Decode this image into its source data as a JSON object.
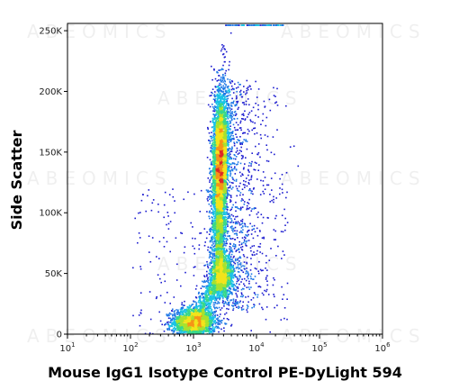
{
  "chart_data": {
    "type": "scatter",
    "style": "density-dot-plot",
    "xlabel": "Mouse IgG1 Isotype Control PE-DyLight 594",
    "ylabel": "Side Scatter",
    "x_scale": "log",
    "xlim": [
      10,
      1000000
    ],
    "ylim": [
      0,
      256000
    ],
    "x_ticks": [
      {
        "base": "10",
        "exp": "1",
        "value": 10
      },
      {
        "base": "10",
        "exp": "2",
        "value": 100
      },
      {
        "base": "10",
        "exp": "3",
        "value": 1000
      },
      {
        "base": "10",
        "exp": "4",
        "value": 10000
      },
      {
        "base": "10",
        "exp": "5",
        "value": 100000
      },
      {
        "base": "10",
        "exp": "6",
        "value": 1000000
      }
    ],
    "y_ticks": [
      {
        "label": "0",
        "value": 0
      },
      {
        "label": "50K",
        "value": 50000
      },
      {
        "label": "100K",
        "value": 100000
      },
      {
        "label": "150K",
        "value": 150000
      },
      {
        "label": "200K",
        "value": 200000
      },
      {
        "label": "250K",
        "value": 250000
      }
    ],
    "populations": [
      {
        "x_center": 1000,
        "y_center": 10000,
        "count": 2200,
        "x_spread": 0.17,
        "y_spread": 6000
      },
      {
        "x_center": 2600,
        "y_center": 140000,
        "count": 5200,
        "x_spread": 0.06,
        "y_spread": 30000
      },
      {
        "x_center": 2800,
        "y_center": 48000,
        "count": 1400,
        "x_spread": 0.09,
        "y_spread": 9000
      }
    ],
    "density_colors": [
      "#1a1acf",
      "#1e78e6",
      "#19c3e6",
      "#38d88a",
      "#a8e22e",
      "#f2e41c",
      "#f79318",
      "#e02626"
    ],
    "watermark": "ABEOMICS",
    "grid": false,
    "legend": "none"
  }
}
